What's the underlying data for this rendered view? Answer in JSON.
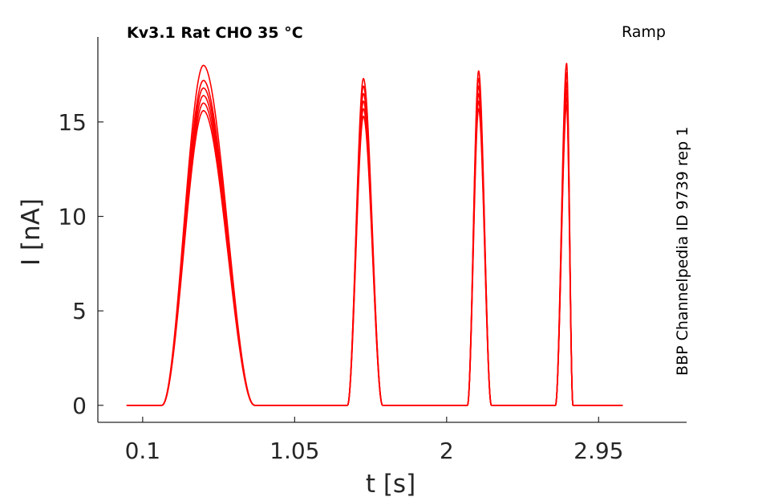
{
  "chart_data": {
    "type": "line",
    "title": "Kv3.1  Rat  CHO  35 °C",
    "protocol": "Ramp",
    "source_note": "BBP Channelpedia ID 9739 rep 1",
    "xlabel": "t [s]",
    "ylabel": "I [nA]",
    "xlim": [
      -0.18,
      3.5
    ],
    "ylim": [
      -0.9,
      19.5
    ],
    "xticks": [
      0.1,
      1.05,
      2,
      2.95
    ],
    "xtick_labels": [
      "0.1",
      "1.05",
      "2",
      "2.95"
    ],
    "yticks": [
      0,
      5,
      10,
      15
    ],
    "ytick_labels": [
      "0",
      "5",
      "10",
      "15"
    ],
    "grid": false,
    "line_color": "#ff0000",
    "baseline_x": [
      -0.0,
      3.1
    ],
    "peaks": [
      {
        "start": 0.22,
        "peak": 0.48,
        "end": 0.8,
        "heights": [
          18.0,
          17.2,
          16.8,
          16.4,
          16.0,
          15.6
        ]
      },
      {
        "start": 1.38,
        "peak": 1.48,
        "end": 1.6,
        "heights": [
          17.3,
          16.9,
          16.5,
          16.1,
          15.7,
          15.3
        ]
      },
      {
        "start": 2.13,
        "peak": 2.2,
        "end": 2.28,
        "heights": [
          17.7,
          17.3,
          16.9,
          16.5,
          16.1,
          15.7
        ]
      },
      {
        "start": 2.68,
        "peak": 2.75,
        "end": 2.79,
        "heights": [
          18.1,
          17.6,
          17.1,
          16.7,
          16.3,
          15.9
        ]
      }
    ]
  }
}
